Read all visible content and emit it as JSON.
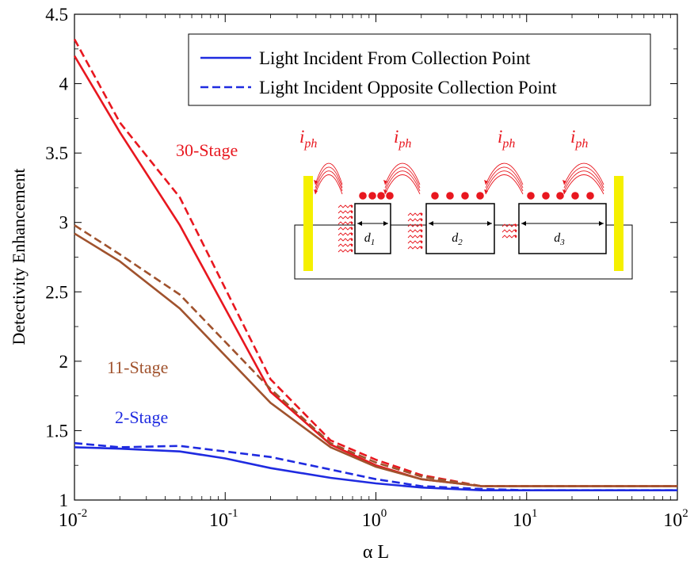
{
  "chart_data": {
    "type": "line",
    "xscale": "log",
    "xlim": [
      0.01,
      100
    ],
    "ylim": [
      1,
      4.5
    ],
    "xlabel": "α L",
    "ylabel": "Detectivity Enhancement",
    "grid": false,
    "legend_position": "top-right",
    "x_ticks": [
      {
        "base": "10",
        "exp": "-2"
      },
      {
        "base": "10",
        "exp": "-1"
      },
      {
        "base": "10",
        "exp": "0"
      },
      {
        "base": "10",
        "exp": "1"
      },
      {
        "base": "10",
        "exp": "2"
      }
    ],
    "y_ticks": [
      "1",
      "1.5",
      "2",
      "2.5",
      "3",
      "3.5",
      "4",
      "4.5"
    ],
    "legend": [
      {
        "label": "Light Incident From Collection Point",
        "style": "solid"
      },
      {
        "label": "Light Incident Opposite Collection Point",
        "style": "dashed"
      }
    ],
    "series": [
      {
        "name": "30-Stage",
        "style": "solid",
        "color": "#e8171f",
        "x": [
          0.01,
          0.02,
          0.05,
          0.2,
          0.5,
          1,
          2,
          5,
          10,
          100
        ],
        "y": [
          4.2,
          3.65,
          2.98,
          1.78,
          1.4,
          1.25,
          1.15,
          1.1,
          1.1,
          1.1
        ]
      },
      {
        "name": "30-Stage",
        "style": "dashed",
        "color": "#e8171f",
        "x": [
          0.01,
          0.02,
          0.05,
          0.2,
          0.5,
          1,
          2,
          5,
          10,
          100
        ],
        "y": [
          4.32,
          3.72,
          3.18,
          1.87,
          1.43,
          1.29,
          1.18,
          1.1,
          1.1,
          1.1
        ]
      },
      {
        "name": "11-Stage",
        "style": "solid",
        "color": "#a0522d",
        "x": [
          0.01,
          0.02,
          0.05,
          0.2,
          0.5,
          1,
          2,
          5,
          10,
          100
        ],
        "y": [
          2.92,
          2.72,
          2.38,
          1.7,
          1.38,
          1.24,
          1.15,
          1.1,
          1.1,
          1.1
        ]
      },
      {
        "name": "11-Stage",
        "style": "dashed",
        "color": "#a0522d",
        "x": [
          0.01,
          0.02,
          0.05,
          0.2,
          0.5,
          1,
          2,
          5,
          10,
          100
        ],
        "y": [
          2.98,
          2.77,
          2.48,
          1.8,
          1.41,
          1.27,
          1.17,
          1.1,
          1.1,
          1.1
        ]
      },
      {
        "name": "2-Stage",
        "style": "solid",
        "color": "#1f2be0",
        "x": [
          0.01,
          0.02,
          0.05,
          0.1,
          0.2,
          0.5,
          1,
          2,
          5,
          10,
          100
        ],
        "y": [
          1.38,
          1.37,
          1.35,
          1.3,
          1.23,
          1.16,
          1.12,
          1.09,
          1.07,
          1.07,
          1.07
        ]
      },
      {
        "name": "2-Stage",
        "style": "dashed",
        "color": "#1f2be0",
        "x": [
          0.01,
          0.02,
          0.05,
          0.1,
          0.2,
          0.5,
          1,
          2,
          5,
          10,
          100
        ],
        "y": [
          1.41,
          1.38,
          1.39,
          1.35,
          1.31,
          1.22,
          1.15,
          1.1,
          1.08,
          1.07,
          1.07
        ]
      }
    ],
    "series_labels": [
      {
        "text": "30-Stage",
        "color": "#e8171f"
      },
      {
        "text": "11-Stage",
        "color": "#a0522d"
      },
      {
        "text": "2-Stage",
        "color": "#1f2be0"
      }
    ],
    "inset": {
      "photocurrent_labels": [
        {
          "main": "i",
          "sub": "ph"
        },
        {
          "main": "i",
          "sub": "ph"
        },
        {
          "main": "i",
          "sub": "ph"
        },
        {
          "main": "i",
          "sub": "ph"
        }
      ],
      "stages": [
        {
          "main": "d",
          "sub": "1"
        },
        {
          "main": "d",
          "sub": "2"
        },
        {
          "main": "d",
          "sub": "3"
        }
      ],
      "colors": {
        "contact": "#f5f000",
        "carrier": "#e8171f",
        "photon": "#e8171f"
      }
    }
  }
}
